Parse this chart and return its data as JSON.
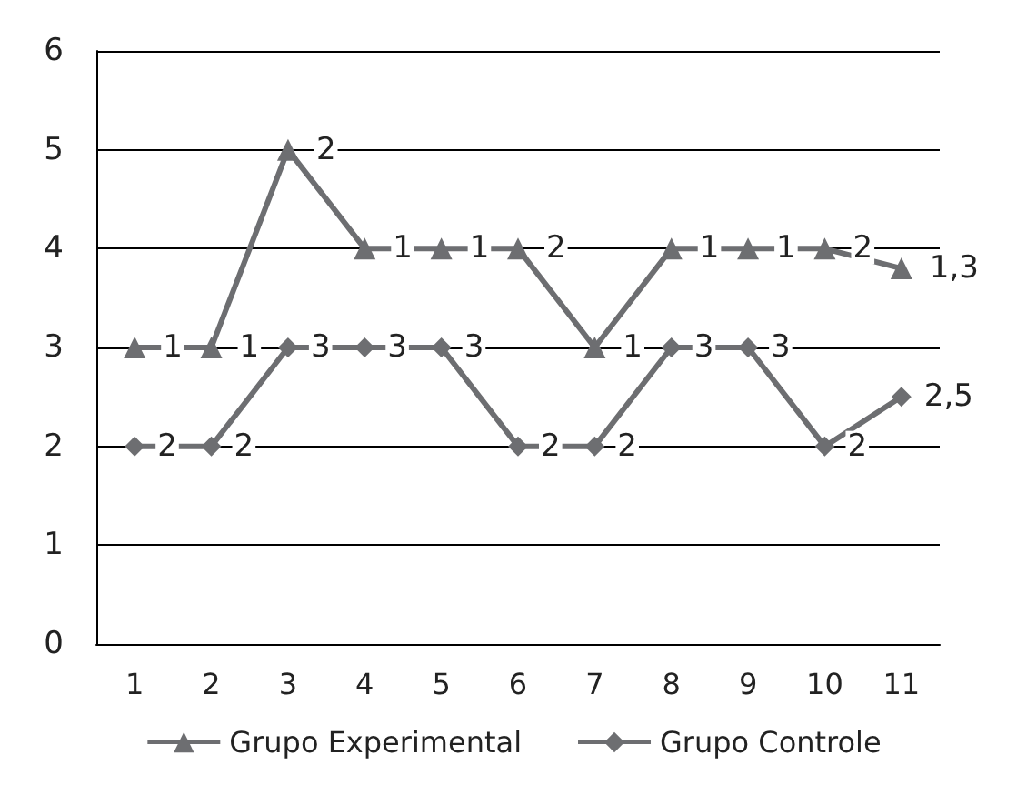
{
  "chart_data": {
    "type": "line",
    "categories": [
      "1",
      "2",
      "3",
      "4",
      "5",
      "6",
      "7",
      "8",
      "9",
      "10",
      "11"
    ],
    "series": [
      {
        "name": "Grupo Experimental",
        "color": "#6d6e71",
        "marker": "triangle",
        "values": [
          3,
          3,
          5,
          4,
          4,
          4,
          3,
          4,
          4,
          4,
          3.8
        ]
      },
      {
        "name": "Grupo Controle",
        "color": "#6d6e71",
        "marker": "diamond",
        "values": [
          2,
          2,
          3,
          3,
          3,
          2,
          2,
          3,
          3,
          2,
          2.5
        ],
        "value_labels": [
          "2",
          "2",
          "3",
          "3",
          "3",
          "2",
          "2",
          "3",
          "3",
          "2",
          "2,5"
        ]
      }
    ],
    "annotations": [
      {
        "text": "1",
        "x": "1",
        "y": 3
      },
      {
        "text": "1",
        "x": "2",
        "y": 3
      },
      {
        "text": "2",
        "x": "3",
        "y": 5
      },
      {
        "text": "1",
        "x": "4",
        "y": 4
      },
      {
        "text": "1",
        "x": "5",
        "y": 4
      },
      {
        "text": "2",
        "x": "6",
        "y": 4
      },
      {
        "text": "1",
        "x": "7",
        "y": 3
      },
      {
        "text": "1",
        "x": "8",
        "y": 4
      },
      {
        "text": "1",
        "x": "9",
        "y": 4
      },
      {
        "text": "2",
        "x": "10",
        "y": 4
      },
      {
        "text": "1,3",
        "x": "11",
        "y": 3.8
      }
    ],
    "ylim": [
      0,
      6
    ],
    "yticks": [
      0,
      1,
      2,
      3,
      4,
      5,
      6
    ],
    "grid": "y",
    "legend": "bottom"
  }
}
